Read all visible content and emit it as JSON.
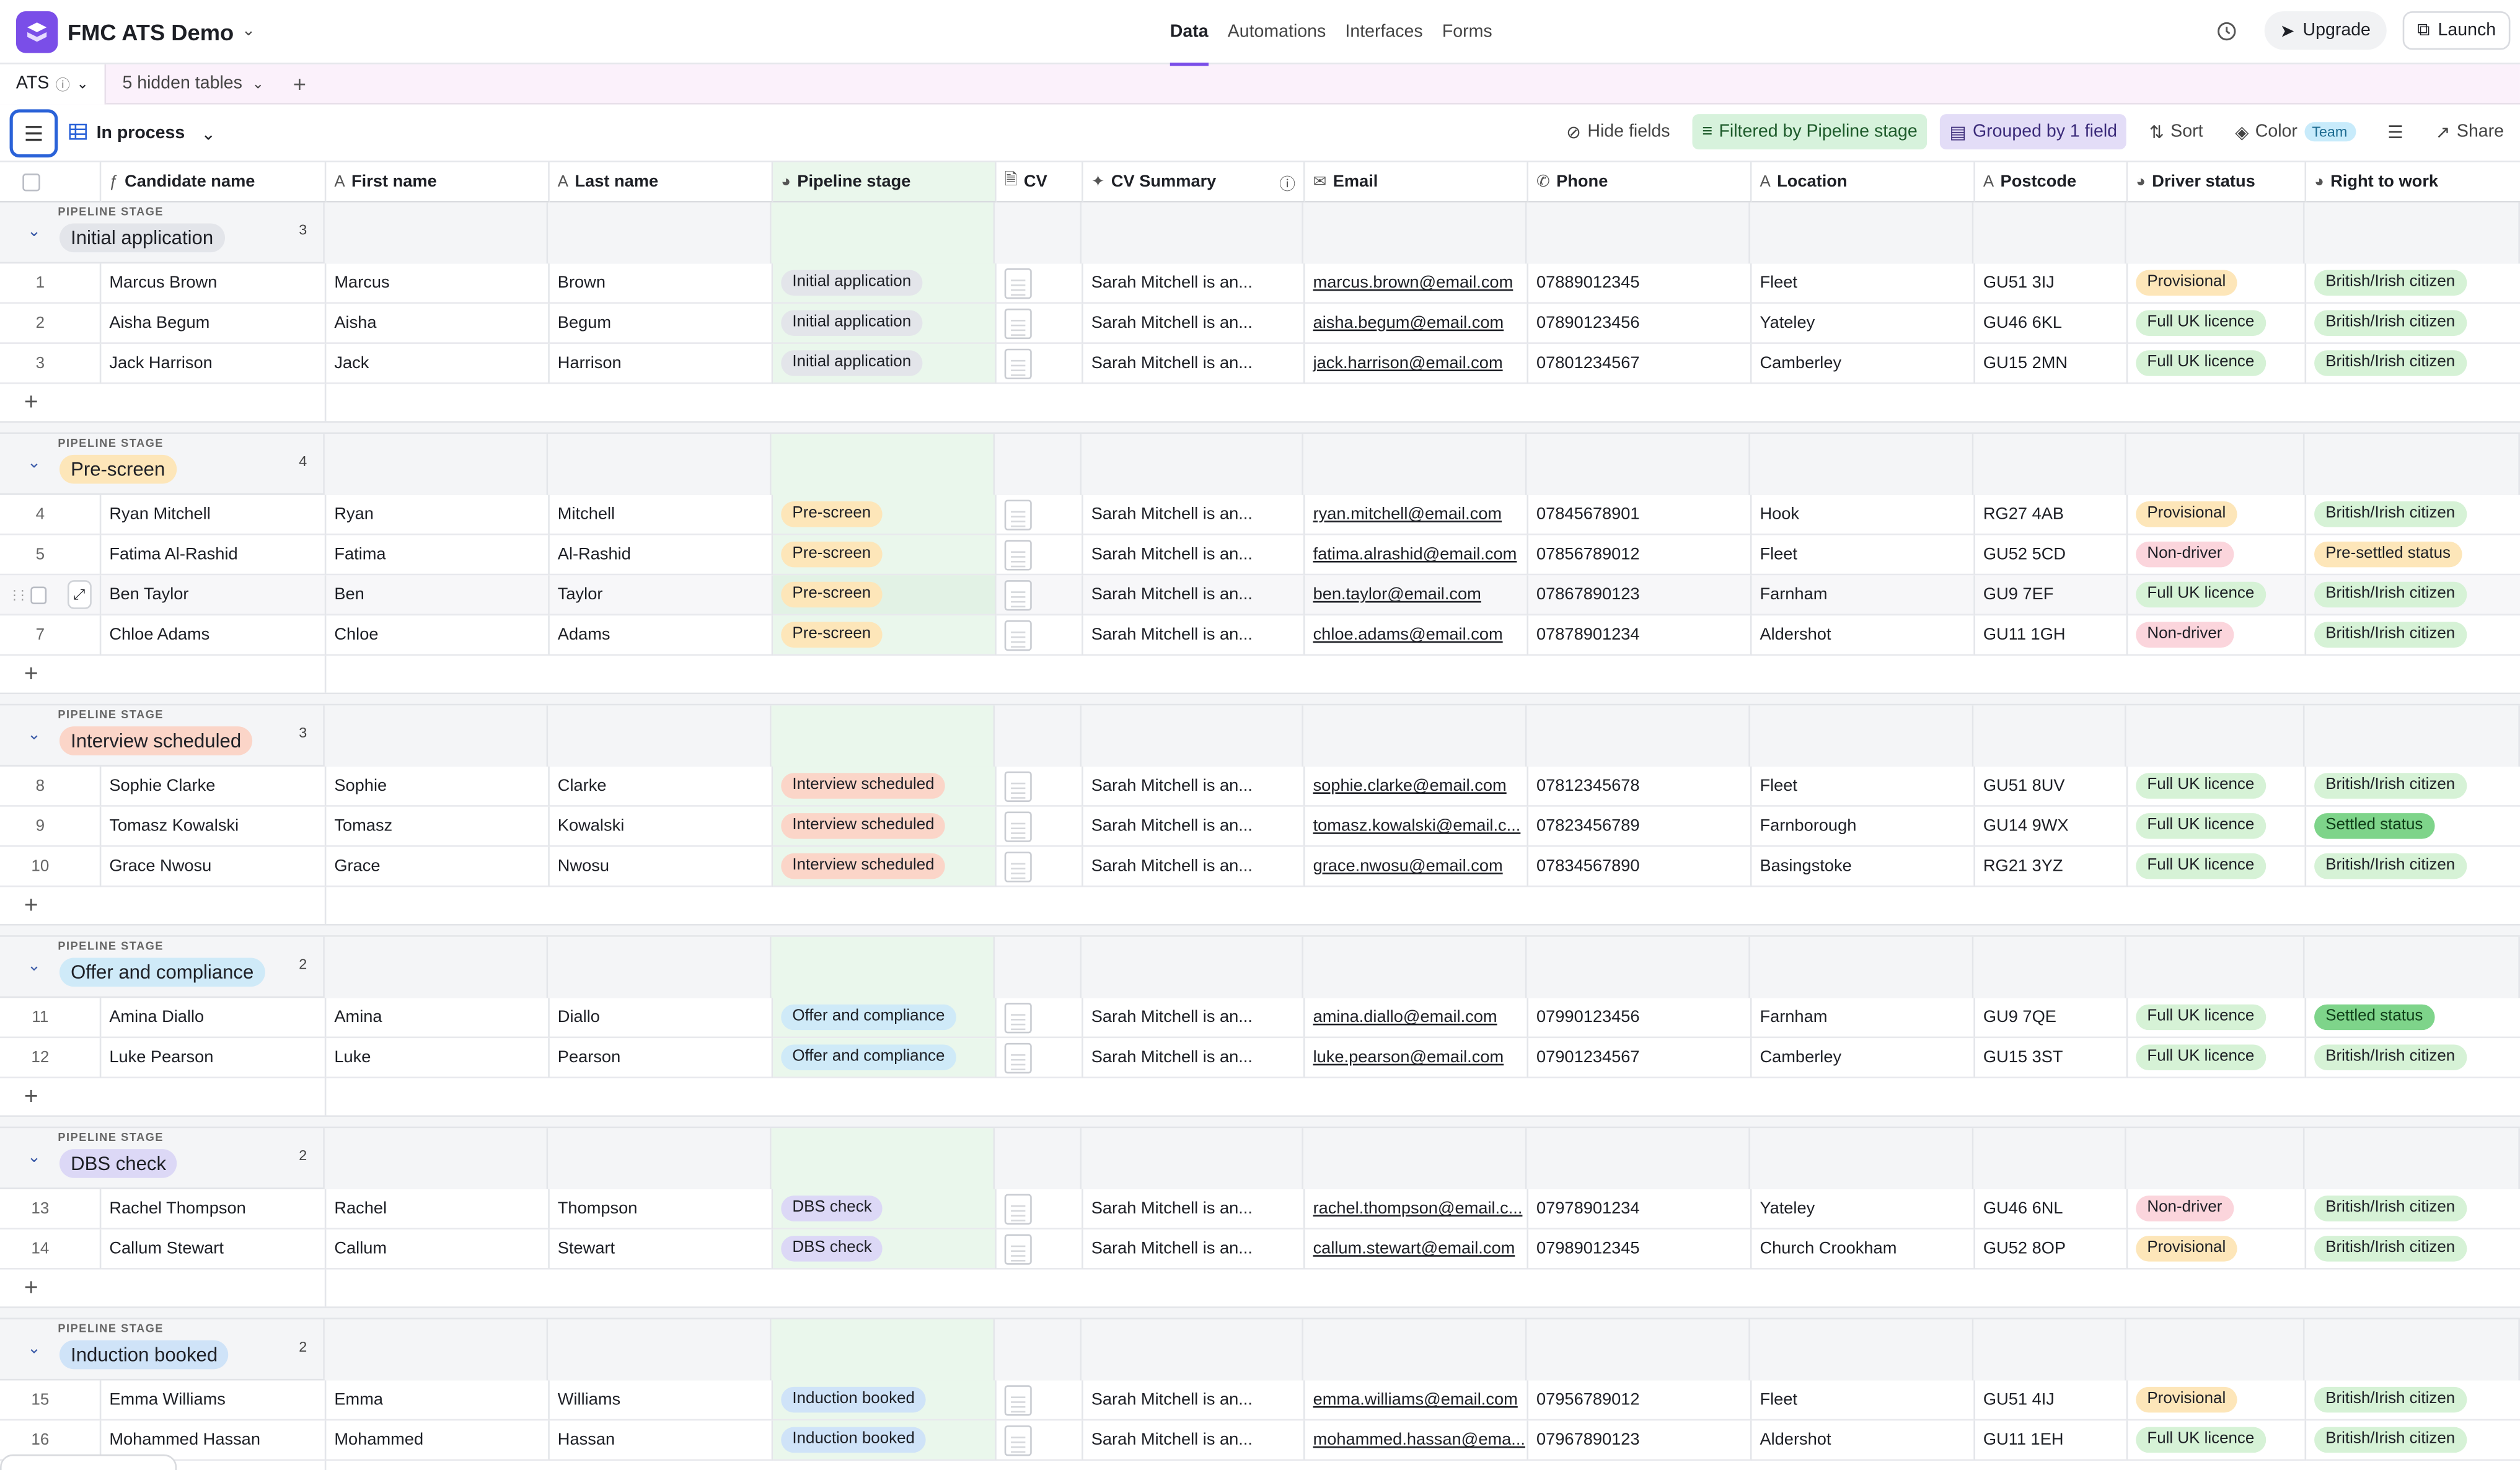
{
  "app": {
    "title": "FMC ATS Demo"
  },
  "nav": {
    "tabs": [
      "Data",
      "Automations",
      "Interfaces",
      "Forms"
    ],
    "active": "Data"
  },
  "topRight": {
    "upgrade": "Upgrade",
    "launch": "Launch"
  },
  "tableBar": {
    "table": "ATS",
    "hidden": "5 hidden tables"
  },
  "toolbar": {
    "view": "In process",
    "hideFields": "Hide fields",
    "filter": "Filtered by Pipeline stage",
    "group": "Grouped by 1 field",
    "sort": "Sort",
    "color": "Color",
    "team": "Team",
    "share": "Share"
  },
  "columns": {
    "name": "Candidate name",
    "first": "First name",
    "last": "Last name",
    "stage": "Pipeline stage",
    "cv": "CV",
    "summary": "CV Summary",
    "email": "Email",
    "phone": "Phone",
    "location": "Location",
    "postcode": "Postcode",
    "driver": "Driver status",
    "rtw": "Right to work"
  },
  "groupLabel": "PIPELINE STAGE",
  "colors": {
    "Initial application": "#e3e5ea",
    "Pre-screen": "#fde6b9",
    "Interview scheduled": "#fbd5c8",
    "Offer and compliance": "#cfeaf8",
    "DBS check": "#dcd8f6",
    "Induction booked": "#cfe3f8",
    "Provisional": "#fde6b9",
    "Full UK licence": "#d6f2d6",
    "Non-driver": "#fbd5dc",
    "British/Irish citizen": "#d6f2d6",
    "Pre-settled status": "#fde6b9",
    "Settled status": "#7ed48a"
  },
  "groups": [
    {
      "stage": "Initial application",
      "count": "3",
      "rows": [
        {
          "n": "1",
          "name": "Marcus Brown",
          "first": "Marcus",
          "last": "Brown",
          "summary": "Sarah Mitchell is an...",
          "email": "marcus.brown@email.com",
          "phone": "07889012345",
          "location": "Fleet",
          "postcode": "GU51 3IJ",
          "driver": "Provisional",
          "rtw": "British/Irish citizen"
        },
        {
          "n": "2",
          "name": "Aisha Begum",
          "first": "Aisha",
          "last": "Begum",
          "summary": "Sarah Mitchell is an...",
          "email": "aisha.begum@email.com",
          "phone": "07890123456",
          "location": "Yateley",
          "postcode": "GU46 6KL",
          "driver": "Full UK licence",
          "rtw": "British/Irish citizen"
        },
        {
          "n": "3",
          "name": "Jack Harrison",
          "first": "Jack",
          "last": "Harrison",
          "summary": "Sarah Mitchell is an...",
          "email": "jack.harrison@email.com",
          "phone": "07801234567",
          "location": "Camberley",
          "postcode": "GU15 2MN",
          "driver": "Full UK licence",
          "rtw": "British/Irish citizen"
        }
      ]
    },
    {
      "stage": "Pre-screen",
      "count": "4",
      "rows": [
        {
          "n": "4",
          "name": "Ryan Mitchell",
          "first": "Ryan",
          "last": "Mitchell",
          "summary": "Sarah Mitchell is an...",
          "email": "ryan.mitchell@email.com",
          "phone": "07845678901",
          "location": "Hook",
          "postcode": "RG27 4AB",
          "driver": "Provisional",
          "rtw": "British/Irish citizen"
        },
        {
          "n": "5",
          "name": "Fatima Al-Rashid",
          "first": "Fatima",
          "last": "Al-Rashid",
          "summary": "Sarah Mitchell is an...",
          "email": "fatima.alrashid@email.com",
          "phone": "07856789012",
          "location": "Fleet",
          "postcode": "GU52 5CD",
          "driver": "Non-driver",
          "rtw": "Pre-settled status"
        },
        {
          "n": "",
          "name": "Ben Taylor",
          "first": "Ben",
          "last": "Taylor",
          "summary": "Sarah Mitchell is an...",
          "email": "ben.taylor@email.com",
          "phone": "07867890123",
          "location": "Farnham",
          "postcode": "GU9 7EF",
          "driver": "Full UK licence",
          "rtw": "British/Irish citizen",
          "hover": true
        },
        {
          "n": "7",
          "name": "Chloe Adams",
          "first": "Chloe",
          "last": "Adams",
          "summary": "Sarah Mitchell is an...",
          "email": "chloe.adams@email.com",
          "phone": "07878901234",
          "location": "Aldershot",
          "postcode": "GU11 1GH",
          "driver": "Non-driver",
          "rtw": "British/Irish citizen"
        }
      ]
    },
    {
      "stage": "Interview scheduled",
      "count": "3",
      "rows": [
        {
          "n": "8",
          "name": "Sophie Clarke",
          "first": "Sophie",
          "last": "Clarke",
          "summary": "Sarah Mitchell is an...",
          "email": "sophie.clarke@email.com",
          "phone": "07812345678",
          "location": "Fleet",
          "postcode": "GU51 8UV",
          "driver": "Full UK licence",
          "rtw": "British/Irish citizen"
        },
        {
          "n": "9",
          "name": "Tomasz Kowalski",
          "first": "Tomasz",
          "last": "Kowalski",
          "summary": "Sarah Mitchell is an...",
          "email": "tomasz.kowalski@email.c...",
          "phone": "07823456789",
          "location": "Farnborough",
          "postcode": "GU14 9WX",
          "driver": "Full UK licence",
          "rtw": "Settled status"
        },
        {
          "n": "10",
          "name": "Grace Nwosu",
          "first": "Grace",
          "last": "Nwosu",
          "summary": "Sarah Mitchell is an...",
          "email": "grace.nwosu@email.com",
          "phone": "07834567890",
          "location": "Basingstoke",
          "postcode": "RG21 3YZ",
          "driver": "Full UK licence",
          "rtw": "British/Irish citizen"
        }
      ]
    },
    {
      "stage": "Offer and compliance",
      "count": "2",
      "rows": [
        {
          "n": "11",
          "name": "Amina Diallo",
          "first": "Amina",
          "last": "Diallo",
          "summary": "Sarah Mitchell is an...",
          "email": "amina.diallo@email.com",
          "phone": "07990123456",
          "location": "Farnham",
          "postcode": "GU9 7QE",
          "driver": "Full UK licence",
          "rtw": "Settled status"
        },
        {
          "n": "12",
          "name": "Luke Pearson",
          "first": "Luke",
          "last": "Pearson",
          "summary": "Sarah Mitchell is an...",
          "email": "luke.pearson@email.com",
          "phone": "07901234567",
          "location": "Camberley",
          "postcode": "GU15 3ST",
          "driver": "Full UK licence",
          "rtw": "British/Irish citizen"
        }
      ]
    },
    {
      "stage": "DBS check",
      "count": "2",
      "rows": [
        {
          "n": "13",
          "name": "Rachel Thompson",
          "first": "Rachel",
          "last": "Thompson",
          "summary": "Sarah Mitchell is an...",
          "email": "rachel.thompson@email.c...",
          "phone": "07978901234",
          "location": "Yateley",
          "postcode": "GU46 6NL",
          "driver": "Non-driver",
          "rtw": "British/Irish citizen"
        },
        {
          "n": "14",
          "name": "Callum Stewart",
          "first": "Callum",
          "last": "Stewart",
          "summary": "Sarah Mitchell is an...",
          "email": "callum.stewart@email.com",
          "phone": "07989012345",
          "location": "Church Crookham",
          "postcode": "GU52 8OP",
          "driver": "Provisional",
          "rtw": "British/Irish citizen"
        }
      ]
    },
    {
      "stage": "Induction booked",
      "count": "2",
      "rows": [
        {
          "n": "15",
          "name": "Emma Williams",
          "first": "Emma",
          "last": "Williams",
          "summary": "Sarah Mitchell is an...",
          "email": "emma.williams@email.com",
          "phone": "07956789012",
          "location": "Fleet",
          "postcode": "GU51 4IJ",
          "driver": "Provisional",
          "rtw": "British/Irish citizen"
        },
        {
          "n": "16",
          "name": "Mohammed Hassan",
          "first": "Mohammed",
          "last": "Hassan",
          "summary": "Sarah Mitchell is an...",
          "email": "mohammed.hassan@ema...",
          "phone": "07967890123",
          "location": "Aldershot",
          "postcode": "GU11 1EH",
          "driver": "Full UK licence",
          "rtw": "British/Irish citizen"
        }
      ]
    }
  ]
}
